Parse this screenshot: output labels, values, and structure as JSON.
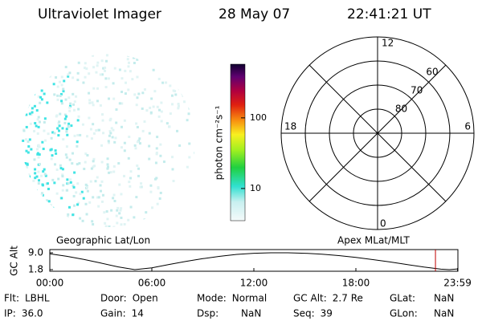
{
  "header": {
    "instrument": "Ultraviolet Imager",
    "date": "28 May 07",
    "time": "22:41:21 UT"
  },
  "colorbar": {
    "label": "photon cm⁻²s⁻¹",
    "log": true,
    "lim": [
      3.5,
      575
    ],
    "ticks": [
      10,
      100
    ]
  },
  "polar": {
    "lat_lim": [
      90,
      50
    ],
    "rings": [
      80,
      70,
      60
    ],
    "mlt_labels": {
      "top": 12,
      "left": 18,
      "right": 6,
      "bottom": 0
    }
  },
  "altitude_plot": {
    "ylabel": "GC Alt",
    "left_title": "Geographic Lat/Lon",
    "right_title": "Apex MLat/MLT",
    "ylim": [
      1.8,
      9.0
    ],
    "yticks": [
      {
        "value": 9.0,
        "label": "9.0"
      },
      {
        "value": 1.8,
        "label": "1.8"
      }
    ],
    "xlim": [
      0,
      24
    ],
    "xticks": [
      {
        "value": 0,
        "label": "00:00"
      },
      {
        "value": 6,
        "label": "06:00"
      },
      {
        "value": 12,
        "label": "12:00"
      },
      {
        "value": 18,
        "label": "18:00"
      },
      {
        "value": 23.98,
        "label": "23:59"
      }
    ],
    "x": [
      0,
      1,
      2,
      3,
      4,
      5,
      6,
      7,
      8,
      9,
      10,
      11,
      12,
      13,
      14,
      15,
      16,
      17,
      18,
      19,
      20,
      21,
      22,
      23,
      23.5,
      23.98
    ],
    "values": [
      8.6,
      7.5,
      6.2,
      4.6,
      3.0,
      1.8,
      2.6,
      4.0,
      5.3,
      6.5,
      7.5,
      8.3,
      8.8,
      9.0,
      9.0,
      8.8,
      8.4,
      7.8,
      7.0,
      6.1,
      5.1,
      4.0,
      2.9,
      2.0,
      1.8,
      2.1
    ],
    "current_hour": 22.68
  },
  "info": [
    [
      {
        "label": "Flt:",
        "value": "LBHL"
      },
      {
        "label": "Door:",
        "value": "Open"
      },
      {
        "label": "Mode:",
        "value": "Normal"
      },
      {
        "label": "GC Alt:",
        "value": "2.7 Re"
      },
      {
        "label": "GLat:",
        "value": "NaN"
      }
    ],
    [
      {
        "label": "IP:",
        "value": "36.0"
      },
      {
        "label": "Gain:",
        "value": "14"
      },
      {
        "label": "Dsp:",
        "value": "NaN"
      },
      {
        "label": "Seq:",
        "value": "39"
      },
      {
        "label": "GLon:",
        "value": "NaN"
      }
    ]
  ]
}
